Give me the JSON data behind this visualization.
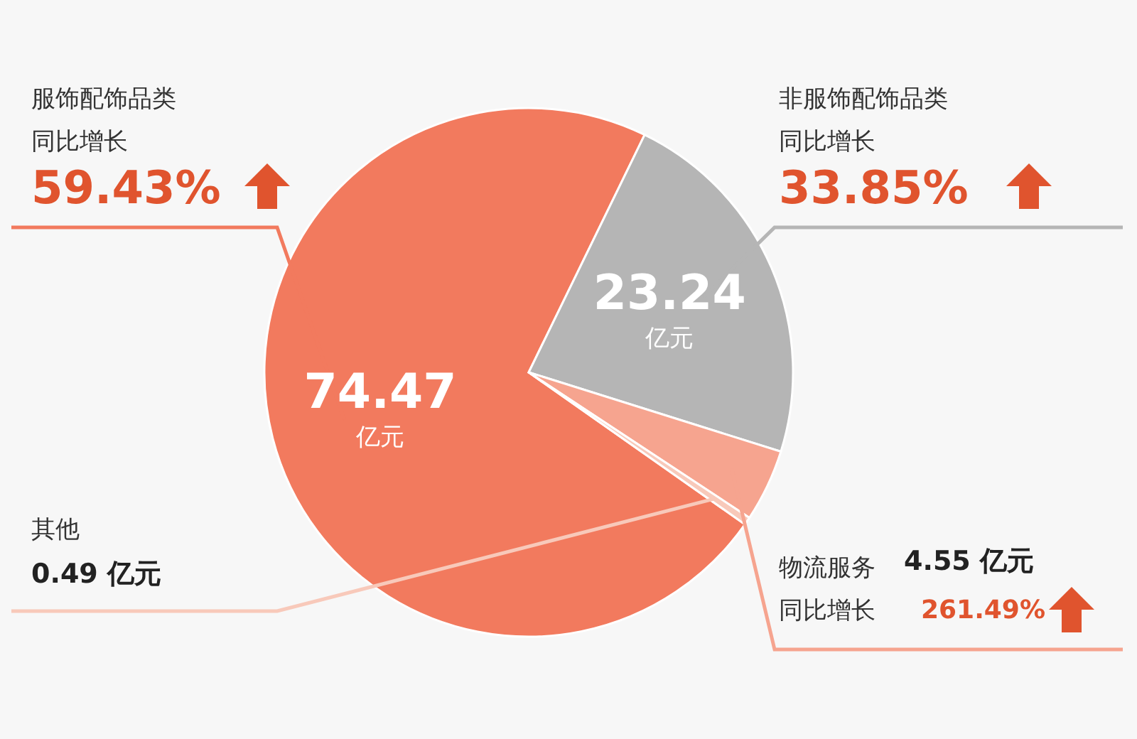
{
  "chart_data": {
    "type": "pie",
    "categories": [
      "服饰配饰品类",
      "非服饰配饰品类",
      "物流服务",
      "其他"
    ],
    "values": [
      74.47,
      23.24,
      4.55,
      0.49
    ],
    "colors": [
      "#f27a5e",
      "#b5b5b5",
      "#f6a48f",
      "#f8c9ba"
    ],
    "value_labels": [
      "74.47 亿元",
      "23.24 亿元",
      "4.55 亿元",
      "0.49 亿元"
    ],
    "annotations": [
      "同比增长",
      "59.43%",
      "同比增长",
      "33.85%",
      "同比增长",
      "261.49%"
    ]
  }
}
